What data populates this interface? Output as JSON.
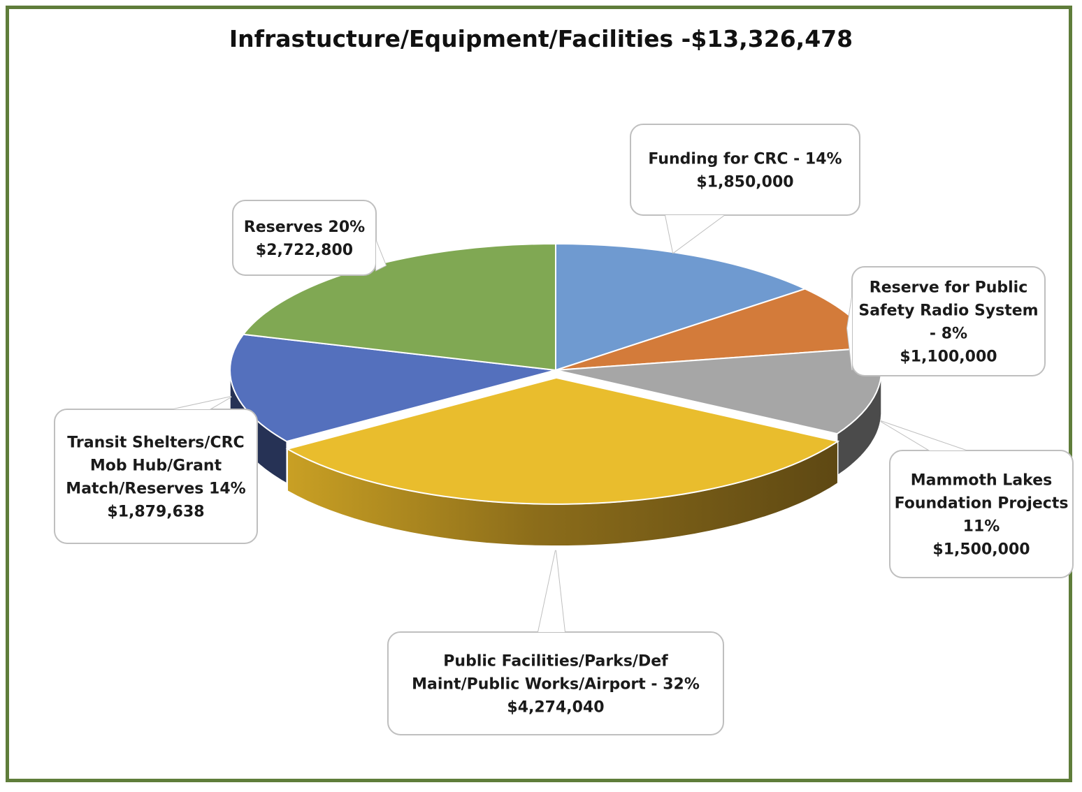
{
  "chart_data": {
    "type": "pie",
    "title": "Infrastucture/Equipment/Facilities -$13,326,478",
    "three_d": true,
    "slices": [
      {
        "name": "Funding for CRC",
        "percent": 14,
        "value": 1850000,
        "color": "#6f9ad0",
        "label_lines": [
          "Funding for CRC - 14%",
          "$1,850,000"
        ]
      },
      {
        "name": "Reserve for Public Safety Radio System",
        "percent": 8,
        "value": 1100000,
        "color": "#d37b3a",
        "label_lines": [
          "Reserve for Public",
          "Safety Radio System",
          "- 8%",
          "$1,100,000"
        ]
      },
      {
        "name": "Mammoth Lakes Foundation Projects",
        "percent": 11,
        "value": 1500000,
        "color": "#a6a6a6",
        "label_lines": [
          "Mammoth Lakes",
          "Foundation Projects",
          "11%",
          "$1,500,000"
        ]
      },
      {
        "name": "Public Facilities/Parks/Def Maint/Public Works/Airport",
        "percent": 32,
        "value": 4274040,
        "color": "#e9bd2d",
        "label_lines": [
          "Public Facilities/Parks/Def",
          "Maint/Public Works/Airport - 32%",
          "$4,274,040"
        ]
      },
      {
        "name": "Transit Shelters/CRC Mob Hub/Grant Match/Reserves",
        "percent": 14,
        "value": 1879638,
        "color": "#5470bd",
        "label_lines": [
          "Transit Shelters/CRC",
          "Mob Hub/Grant",
          "Match/Reserves  14%",
          "$1,879,638"
        ]
      },
      {
        "name": "Reserves",
        "percent": 20,
        "value": 2722800,
        "color": "#80a853",
        "label_lines": [
          "Reserves  20%",
          "$2,722,800"
        ]
      }
    ]
  }
}
